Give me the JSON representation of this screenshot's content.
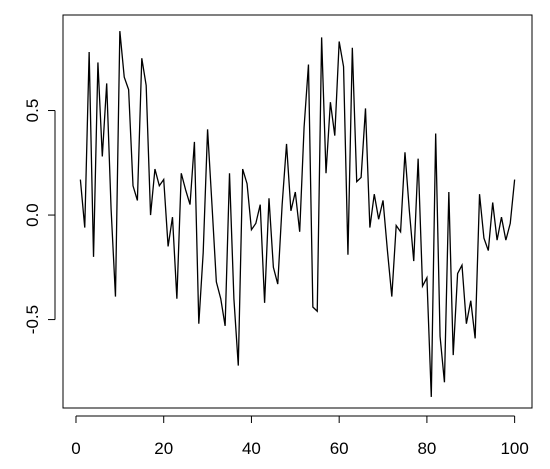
{
  "chart_data": {
    "type": "line",
    "color": "#000000",
    "x": [
      1,
      2,
      3,
      4,
      5,
      6,
      7,
      8,
      9,
      10,
      11,
      12,
      13,
      14,
      15,
      16,
      17,
      18,
      19,
      20,
      21,
      22,
      23,
      24,
      25,
      26,
      27,
      28,
      29,
      30,
      31,
      32,
      33,
      34,
      35,
      36,
      37,
      38,
      39,
      40,
      41,
      42,
      43,
      44,
      45,
      46,
      47,
      48,
      49,
      50,
      51,
      52,
      53,
      54,
      55,
      56,
      57,
      58,
      59,
      60,
      61,
      62,
      63,
      64,
      65,
      66,
      67,
      68,
      69,
      70,
      71,
      72,
      73,
      74,
      75,
      76,
      77,
      78,
      79,
      80,
      81,
      82,
      83,
      84,
      85,
      86,
      87,
      88,
      89,
      90,
      91,
      92,
      93,
      94,
      95,
      96,
      97,
      98,
      99,
      100
    ],
    "values": [
      0.17,
      -0.06,
      0.78,
      -0.2,
      0.73,
      0.28,
      0.63,
      0.03,
      -0.39,
      0.88,
      0.66,
      0.6,
      0.14,
      0.07,
      0.75,
      0.62,
      0.0,
      0.22,
      0.14,
      0.17,
      -0.15,
      -0.01,
      -0.4,
      0.2,
      0.12,
      0.05,
      0.35,
      -0.52,
      -0.18,
      0.41,
      0.05,
      -0.32,
      -0.4,
      -0.53,
      0.2,
      -0.4,
      -0.72,
      0.22,
      0.15,
      -0.07,
      -0.04,
      0.05,
      -0.42,
      0.08,
      -0.25,
      -0.33,
      0.05,
      0.34,
      0.02,
      0.11,
      -0.08,
      0.42,
      0.72,
      -0.44,
      -0.46,
      0.85,
      0.2,
      0.54,
      0.38,
      0.83,
      0.71,
      -0.19,
      0.8,
      0.16,
      0.18,
      0.51,
      -0.06,
      0.1,
      -0.02,
      0.07,
      -0.17,
      -0.39,
      -0.05,
      -0.08,
      0.3,
      0.02,
      -0.22,
      0.27,
      -0.34,
      -0.3,
      -0.87,
      0.39,
      -0.58,
      -0.8,
      0.11,
      -0.67,
      -0.28,
      -0.24,
      -0.52,
      -0.41,
      -0.59,
      0.1,
      -0.11,
      -0.17,
      0.06,
      -0.12,
      -0.01,
      -0.12,
      -0.04,
      0.17
    ],
    "xlim": [
      -2.96,
      103.96
    ],
    "ylim": [
      -0.923,
      0.957
    ],
    "xticks": [
      0,
      20,
      40,
      60,
      80,
      100
    ],
    "yticks": [
      {
        "value": -0.5,
        "label": "-0.5"
      },
      {
        "value": 0,
        "label": "0.0"
      },
      {
        "value": 0.5,
        "label": "0.5"
      }
    ]
  }
}
